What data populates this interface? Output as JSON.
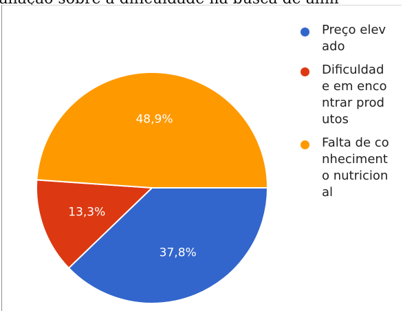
{
  "header": {
    "title_fragment": "valiação sobre a dificuldade na busca de alim"
  },
  "chart_data": {
    "type": "pie",
    "title": "",
    "legend_position": "right",
    "slices": [
      {
        "label": "Preço elevado",
        "value": 37.8,
        "display": "37,8%",
        "color": "#3366cc"
      },
      {
        "label": "Dificuldade em encontrar produtos",
        "value": 13.3,
        "display": "13,3%",
        "color": "#dc3912"
      },
      {
        "label": "Falta de conhecimento nutricional",
        "value": 48.9,
        "display": "48,9%",
        "color": "#ff9900"
      }
    ]
  },
  "legend": {
    "items": [
      {
        "label": "Preço elevado",
        "color": "#3366cc"
      },
      {
        "label": "Dificuldade em encontrar produtos",
        "color": "#dc3912"
      },
      {
        "label": "Falta de conhecimento nutricional",
        "color": "#ff9900"
      }
    ]
  }
}
